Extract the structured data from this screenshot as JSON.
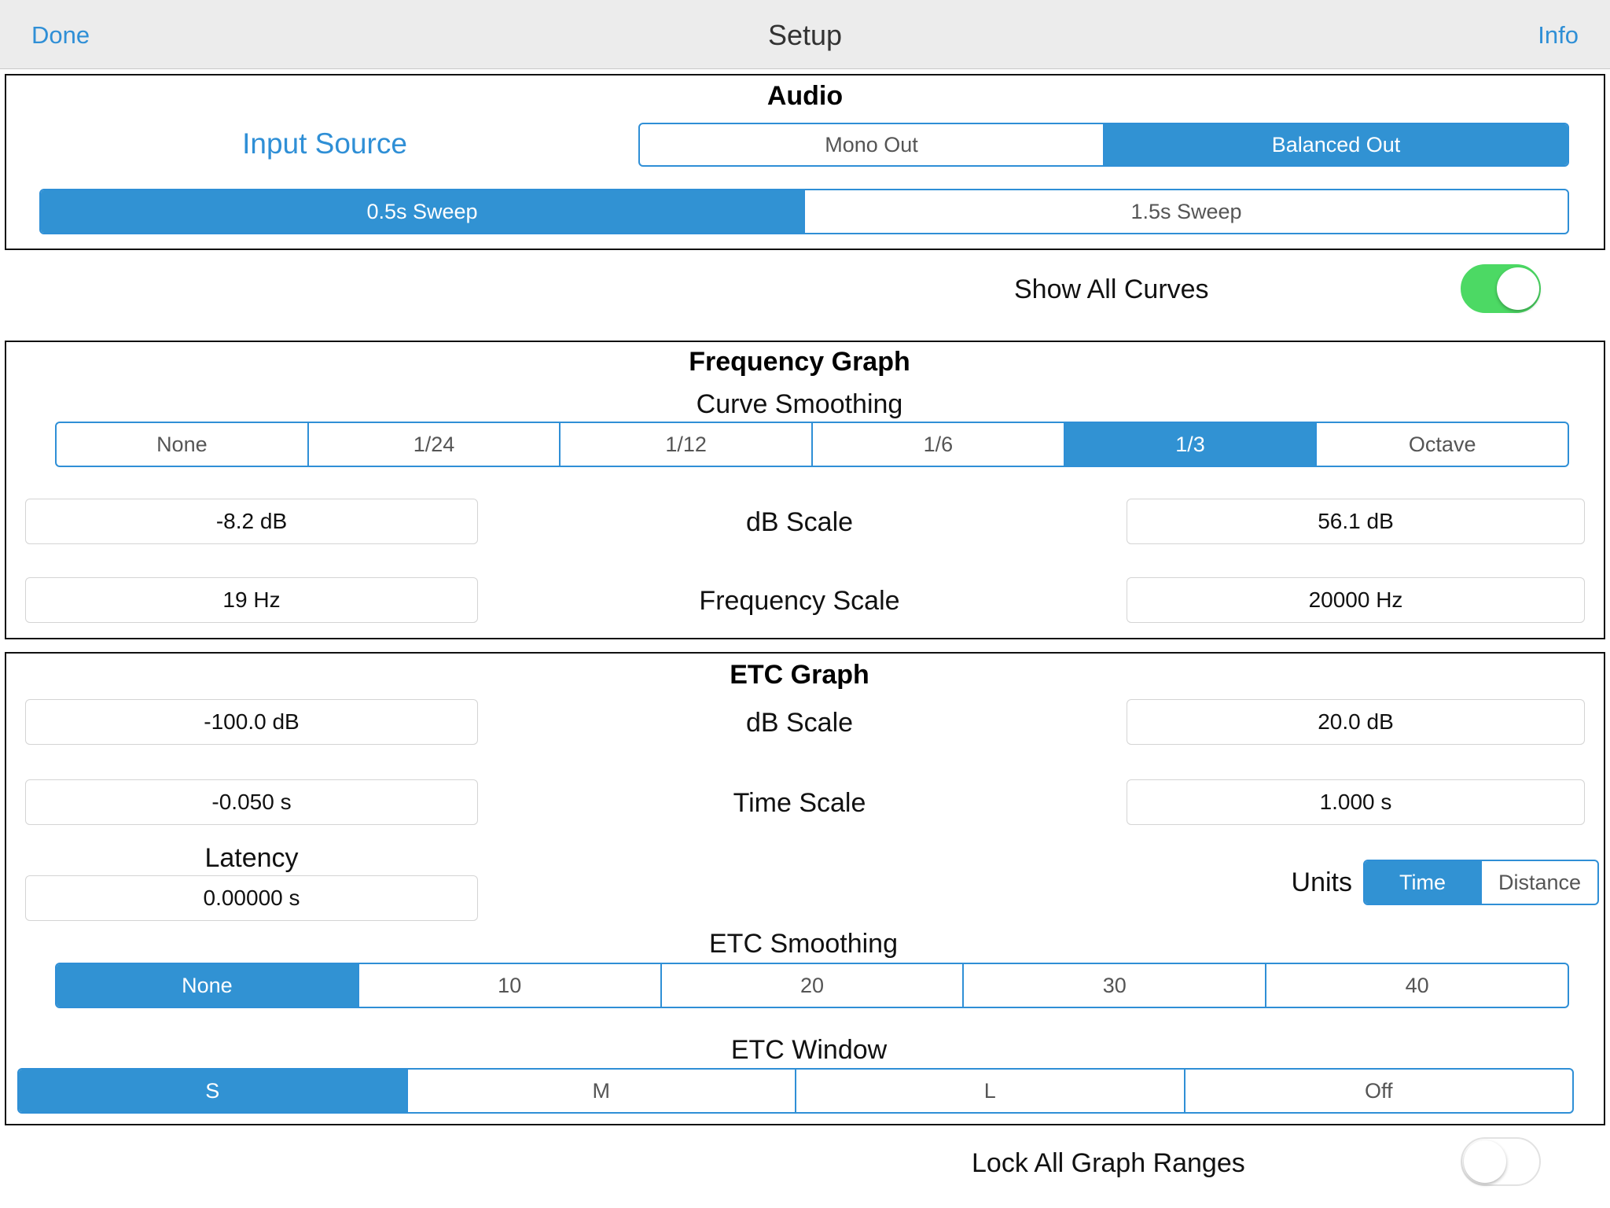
{
  "nav": {
    "left_label": "Done",
    "title": "Setup",
    "right_label": "Info"
  },
  "audio": {
    "title": "Audio",
    "input_source_label": "Input Source",
    "output_options": [
      "Mono Out",
      "Balanced Out"
    ],
    "output_selected": "Balanced Out",
    "sweep_options": [
      "0.5s Sweep",
      "1.5s Sweep"
    ],
    "sweep_selected": "0.5s Sweep"
  },
  "show_all_curves": {
    "label": "Show All Curves",
    "on": true
  },
  "frequency_graph": {
    "title": "Frequency Graph",
    "curve_smoothing_label": "Curve Smoothing",
    "curve_smoothing_options": [
      "None",
      "1/24",
      "1/12",
      "1/6",
      "1/3",
      "Octave"
    ],
    "curve_smoothing_selected": "1/3",
    "db_scale": {
      "label": "dB Scale",
      "min": "-8.2 dB",
      "max": "56.1 dB"
    },
    "freq_scale": {
      "label": "Frequency Scale",
      "min": "19 Hz",
      "max": "20000 Hz"
    }
  },
  "etc_graph": {
    "title": "ETC Graph",
    "db_scale": {
      "label": "dB Scale",
      "min": "-100.0 dB",
      "max": "20.0 dB"
    },
    "time_scale": {
      "label": "Time Scale",
      "min": "-0.050 s",
      "max": "1.000 s"
    },
    "latency": {
      "label": "Latency",
      "value": "0.00000 s"
    },
    "units": {
      "label": "Units",
      "options": [
        "Time",
        "Distance"
      ],
      "selected": "Time"
    },
    "smoothing_label": "ETC Smoothing",
    "smoothing_options": [
      "None",
      "10",
      "20",
      "30",
      "40"
    ],
    "smoothing_selected": "None",
    "window_label": "ETC Window",
    "window_options": [
      "S",
      "M",
      "L",
      "Off"
    ],
    "window_selected": "S"
  },
  "lock_all_graph_ranges": {
    "label": "Lock All Graph Ranges",
    "on": false
  },
  "colors": {
    "accent": "#3192d3",
    "switch_on": "#4cd964",
    "nav_bg": "#ececec"
  }
}
